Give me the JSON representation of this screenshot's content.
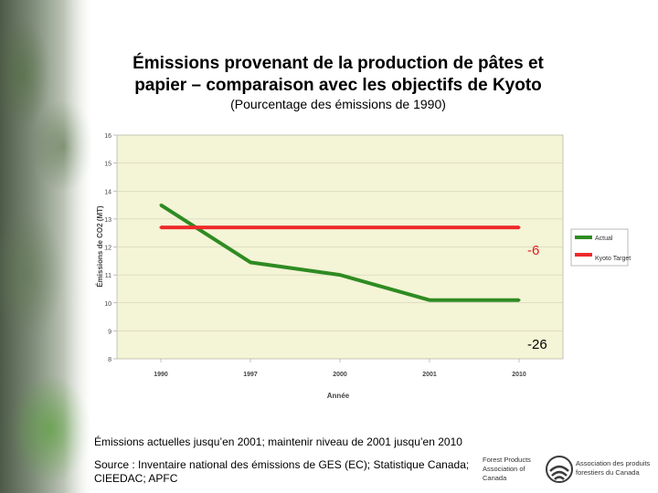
{
  "header": {
    "title_line1": "Émissions provenant de la production de pâtes et",
    "title_line2": "papier – comparaison avec les objectifs de Kyoto",
    "subtitle": "(Pourcentage des émissions de 1990)"
  },
  "chart_data": {
    "type": "line",
    "ylabel": "Émissions de CO2 (MT)",
    "xlabel": "Année",
    "categories": [
      "1990",
      "1997",
      "2000",
      "2001",
      "2010"
    ],
    "ylim": [
      8,
      16
    ],
    "yticks": [
      "8",
      "9",
      "10",
      "11",
      "12",
      "13",
      "14",
      "15",
      "16"
    ],
    "series": [
      {
        "name": "Actual",
        "color": "#2e8b22",
        "values": [
          13.5,
          11.45,
          11.0,
          10.1,
          10.1
        ]
      },
      {
        "name": "Kyoto Target",
        "color": "#ee2a2a",
        "values": [
          12.7,
          12.7,
          12.7,
          12.7,
          12.7
        ]
      }
    ],
    "annotations": [
      "-6",
      "-26"
    ],
    "plot_background": "#f4f4d6"
  },
  "footer": {
    "note": "Émissions actuelles jusqu’en 2001; maintenir niveau de 2001 jusqu’en 2010",
    "source": "Source : Inventaire national des émissions de GES (EC); Statistique Canada; CIEEDAC; APFC"
  },
  "logo": {
    "left_text": "Forest Products Association of Canada",
    "right_text": "Association des produits forestiers du Canada",
    "color": "#3c3c3c"
  }
}
